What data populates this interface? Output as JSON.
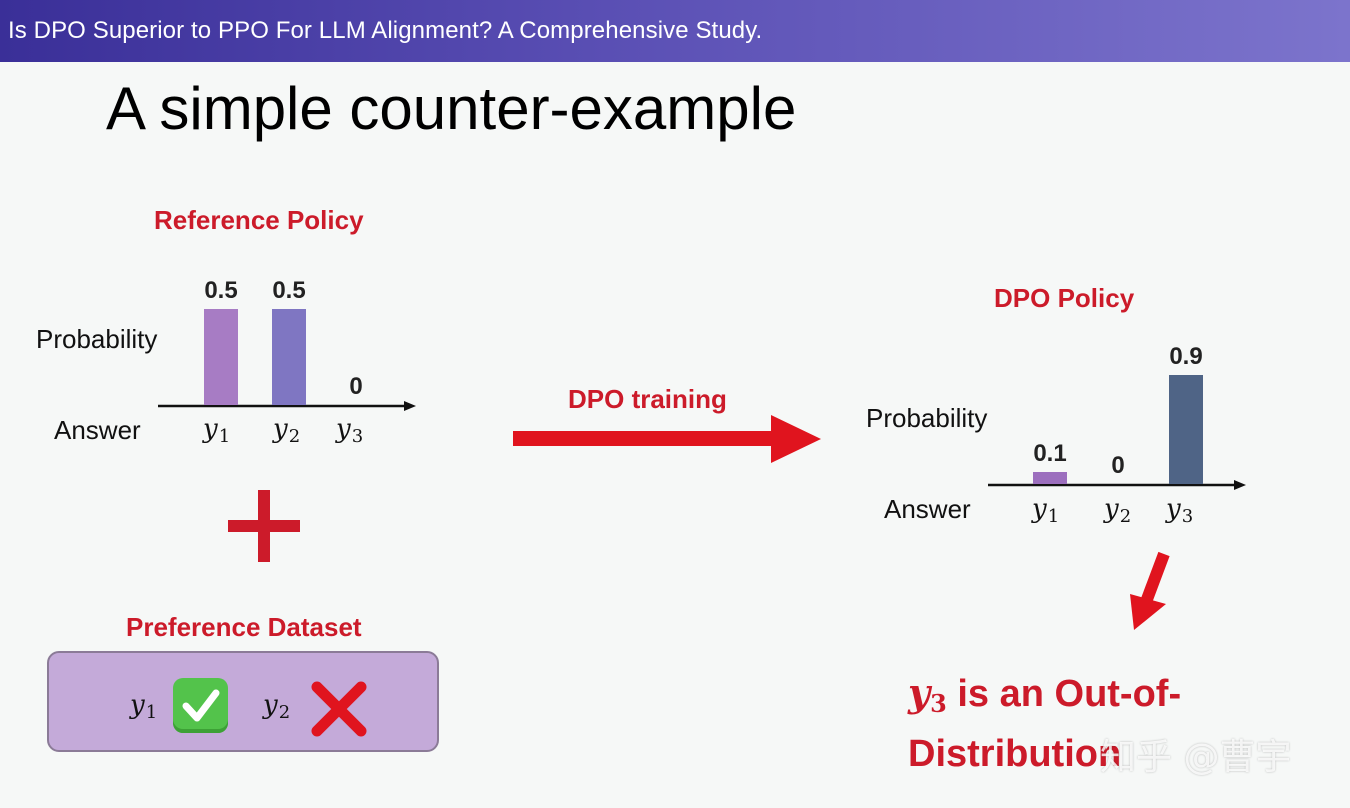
{
  "header": {
    "title": "Is DPO Superior to PPO For LLM Alignment? A Comprehensive Study."
  },
  "slide": {
    "title": "A simple counter-example"
  },
  "reference_policy": {
    "title": "Reference Policy",
    "y_label": "Probability",
    "x_label": "Answer",
    "categories": [
      "y1",
      "y2",
      "y3"
    ],
    "category_display": [
      {
        "base": "y",
        "sub": "1"
      },
      {
        "base": "y",
        "sub": "2"
      },
      {
        "base": "y",
        "sub": "3"
      }
    ],
    "values": [
      0.5,
      0.5,
      0
    ],
    "value_labels": [
      "0.5",
      "0.5",
      "0"
    ],
    "bar_colors": [
      "#a77cc4",
      "#7f76c2",
      "#000000"
    ]
  },
  "plus_sign": "+",
  "preference_dataset": {
    "title": "Preference Dataset",
    "chosen": {
      "base": "y",
      "sub": "1"
    },
    "rejected": {
      "base": "y",
      "sub": "2"
    },
    "chosen_icon": "check-mark-icon",
    "rejected_icon": "cross-mark-icon"
  },
  "training_arrow": {
    "label": "DPO training",
    "color": "#e0141e"
  },
  "dpo_policy": {
    "title": "DPO Policy",
    "y_label": "Probability",
    "x_label": "Answer",
    "categories": [
      "y1",
      "y2",
      "y3"
    ],
    "category_display": [
      {
        "base": "y",
        "sub": "1"
      },
      {
        "base": "y",
        "sub": "2"
      },
      {
        "base": "y",
        "sub": "3"
      }
    ],
    "values": [
      0.1,
      0,
      0.9
    ],
    "value_labels": [
      "0.1",
      "0",
      "0.9"
    ],
    "bar_colors": [
      "#9c6fbe",
      "#000000",
      "#4f6486"
    ]
  },
  "conclusion": {
    "var_base": "y",
    "var_sub": "3",
    "text_line1": " is an Out-of-",
    "text_line2": "Distribution "
  },
  "watermark": "知乎 @曹宇",
  "colors": {
    "accent_red": "#cc1b2a",
    "arrow_red": "#e0141e",
    "header_start": "#3a2f98",
    "header_end": "#7c74cc",
    "pref_box": "#c4aad9",
    "check_green": "#53c34b"
  }
}
